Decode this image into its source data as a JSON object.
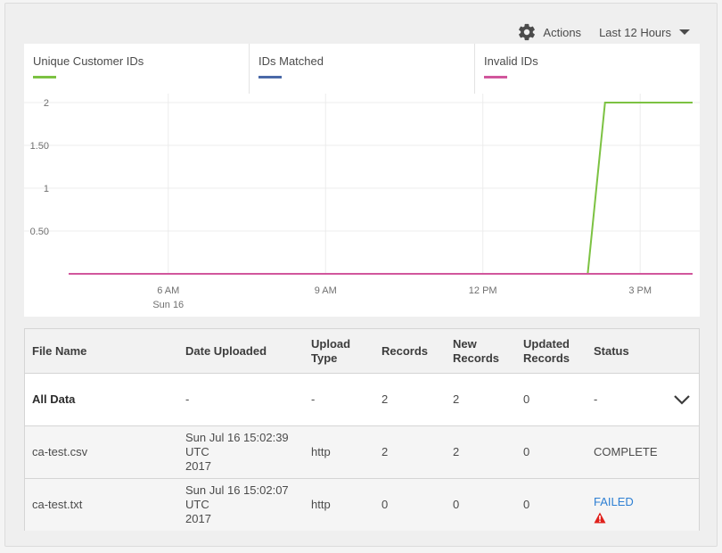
{
  "toolbar": {
    "actions_label": "Actions",
    "range_label": "Last 12 Hours",
    "icons": [
      "gear-icon",
      "caret-down-icon"
    ]
  },
  "legend": {
    "items": [
      {
        "label": "Unique Customer IDs",
        "color": "#7cc242"
      },
      {
        "label": "IDs Matched",
        "color": "#4a69a8"
      },
      {
        "label": "Invalid IDs",
        "color": "#d1569c"
      }
    ]
  },
  "chart_data": {
    "type": "line",
    "title": "",
    "xlabel": "",
    "ylabel": "",
    "x_ticks": [
      {
        "label": "6 AM",
        "sublabel": "Sun 16",
        "hour": 6
      },
      {
        "label": "9 AM",
        "sublabel": "",
        "hour": 9
      },
      {
        "label": "12 PM",
        "sublabel": "",
        "hour": 12
      },
      {
        "label": "3 PM",
        "sublabel": "",
        "hour": 15
      }
    ],
    "y_ticks": [
      "0.50",
      "1",
      "1.50",
      "2"
    ],
    "y_tick_values": [
      0.5,
      1,
      1.5,
      2
    ],
    "xlim": [
      4.1,
      16.0
    ],
    "ylim": [
      0,
      2
    ],
    "grid": true,
    "series": [
      {
        "name": "Unique Customer IDs",
        "color": "#7cc242",
        "x": [
          4.1,
          14.0,
          14.33,
          16.0
        ],
        "y": [
          0,
          0,
          2,
          2
        ]
      },
      {
        "name": "IDs Matched",
        "color": "#4a69a8",
        "x": [
          4.1,
          16.0
        ],
        "y": [
          0,
          0
        ]
      },
      {
        "name": "Invalid IDs",
        "color": "#d1569c",
        "x": [
          4.1,
          16.0
        ],
        "y": [
          0,
          0
        ]
      }
    ]
  },
  "table": {
    "headers": [
      {
        "line1": "File Name",
        "line2": ""
      },
      {
        "line1": "Date Uploaded",
        "line2": ""
      },
      {
        "line1": "Upload",
        "line2": "Type"
      },
      {
        "line1": "Records",
        "line2": ""
      },
      {
        "line1": "New",
        "line2": "Records"
      },
      {
        "line1": "Updated",
        "line2": "Records"
      },
      {
        "line1": "Status",
        "line2": ""
      }
    ],
    "all_row": {
      "name": "All Data",
      "date": "-",
      "type": "-",
      "records": "2",
      "new_records": "2",
      "updated": "0",
      "status": "-"
    },
    "rows": [
      {
        "name": "ca-test.csv",
        "date_line1": "Sun Jul 16 15:02:39 UTC",
        "date_line2": "2017",
        "type": "http",
        "records": "2",
        "new_records": "2",
        "updated": "0",
        "status": "COMPLETE"
      },
      {
        "name": "ca-test.txt",
        "date_line1": "Sun Jul 16 15:02:07 UTC",
        "date_line2": "2017",
        "type": "http",
        "records": "0",
        "new_records": "0",
        "updated": "0",
        "status": "FAILED",
        "status_color": "#2d7fd3",
        "status_icon": "warning-icon"
      }
    ]
  }
}
